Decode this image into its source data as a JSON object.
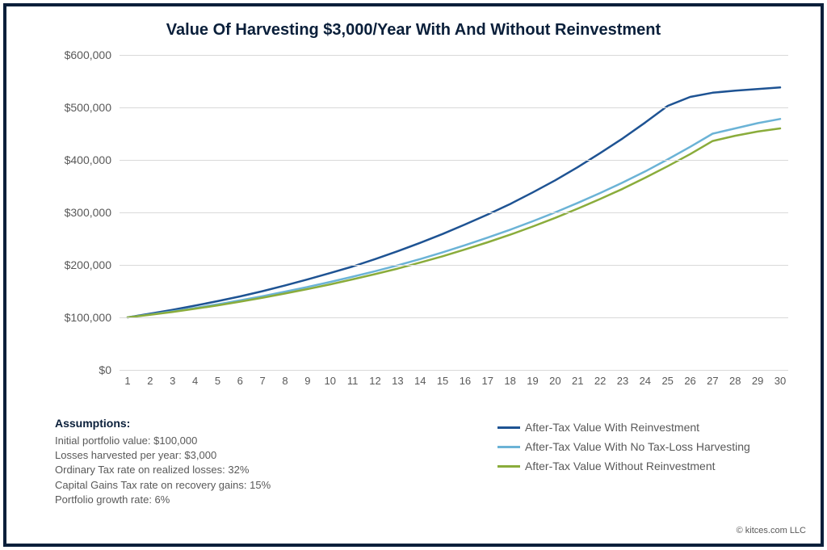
{
  "frame": {
    "border_color": "#0a1f3a",
    "border_width": 4,
    "background": "#ffffff"
  },
  "title": {
    "text": "Value Of Harvesting $3,000/Year With And Without Reinvestment",
    "color": "#0a1f3a",
    "fontsize": 20,
    "fontweight": 700
  },
  "chart": {
    "type": "line",
    "background_color": "#ffffff",
    "grid_color": "#d9d9d9",
    "axis_label_color": "#595959",
    "axis_label_fontsize": 14,
    "line_width": 2.5,
    "ylim": [
      0,
      600000
    ],
    "ytick_step": 100000,
    "yticks": [
      "$0",
      "$100,000",
      "$200,000",
      "$300,000",
      "$400,000",
      "$500,000",
      "$600,000"
    ],
    "xlim": [
      1,
      30
    ],
    "xticks": [
      "1",
      "2",
      "3",
      "4",
      "5",
      "6",
      "7",
      "8",
      "9",
      "10",
      "11",
      "12",
      "13",
      "14",
      "15",
      "16",
      "17",
      "18",
      "19",
      "20",
      "21",
      "22",
      "23",
      "24",
      "25",
      "26",
      "27",
      "28",
      "29",
      "30"
    ],
    "series": [
      {
        "name": "After-Tax Value With Reinvestment",
        "color": "#1e5393",
        "x": [
          1,
          2,
          3,
          4,
          5,
          6,
          7,
          8,
          9,
          10,
          11,
          12,
          13,
          14,
          15,
          16,
          17,
          18,
          19,
          20,
          21,
          22,
          23,
          24,
          25,
          26,
          27,
          28,
          29,
          30
        ],
        "y": [
          100000,
          107000,
          114500,
          122500,
          131000,
          140000,
          150000,
          161000,
          172500,
          184500,
          197000,
          211000,
          226000,
          242000,
          259000,
          277000,
          296000,
          316000,
          338000,
          361000,
          386000,
          413000,
          441000,
          471000,
          503000,
          520000,
          528000,
          532000,
          535000,
          538000
        ]
      },
      {
        "name": "After-Tax Value With No Tax-Loss Harvesting",
        "color": "#6bb3d6",
        "x": [
          1,
          2,
          3,
          4,
          5,
          6,
          7,
          8,
          9,
          10,
          11,
          12,
          13,
          14,
          15,
          16,
          17,
          18,
          19,
          20,
          21,
          22,
          23,
          24,
          25,
          26,
          27,
          28,
          29,
          30
        ],
        "y": [
          100000,
          105500,
          111500,
          118000,
          125000,
          132500,
          140500,
          149000,
          158000,
          167500,
          177500,
          188000,
          199000,
          211000,
          224000,
          237500,
          252000,
          267000,
          283000,
          300000,
          318000,
          337000,
          357000,
          378000,
          401000,
          425000,
          450000,
          460000,
          470000,
          478000
        ]
      },
      {
        "name": "After-Tax Value Without Reinvestment",
        "color": "#8aac3b",
        "x": [
          1,
          2,
          3,
          4,
          5,
          6,
          7,
          8,
          9,
          10,
          11,
          12,
          13,
          14,
          15,
          16,
          17,
          18,
          19,
          20,
          21,
          22,
          23,
          24,
          25,
          26,
          27,
          28,
          29,
          30
        ],
        "y": [
          100000,
          105000,
          110500,
          116500,
          123000,
          130000,
          137500,
          145500,
          154000,
          163000,
          172500,
          182500,
          193000,
          204500,
          216500,
          229500,
          243000,
          257500,
          273000,
          289500,
          307000,
          325500,
          345000,
          366000,
          388000,
          411000,
          436000,
          446000,
          454000,
          460000
        ]
      }
    ]
  },
  "legend": {
    "fontsize": 14,
    "color": "#595959",
    "items": [
      {
        "label": "After-Tax Value With Reinvestment",
        "swatch_color": "#1e5393"
      },
      {
        "label": "After-Tax Value With No Tax-Loss Harvesting",
        "swatch_color": "#6bb3d6"
      },
      {
        "label": "After-Tax Value Without Reinvestment",
        "swatch_color": "#8aac3b"
      }
    ]
  },
  "assumptions": {
    "heading": "Assumptions:",
    "heading_color": "#0a1f3a",
    "text_color": "#595959",
    "fontsize": 13,
    "lines": [
      "Initial portfolio value: $100,000",
      "Losses harvested per year: $3,000",
      "Ordinary Tax rate on realized losses: 32%",
      "Capital Gains Tax rate on recovery gains: 15%",
      "Portfolio growth rate: 6%"
    ]
  },
  "copyright": {
    "text": "© kitces.com LLC",
    "color": "#595959",
    "fontsize": 11
  }
}
